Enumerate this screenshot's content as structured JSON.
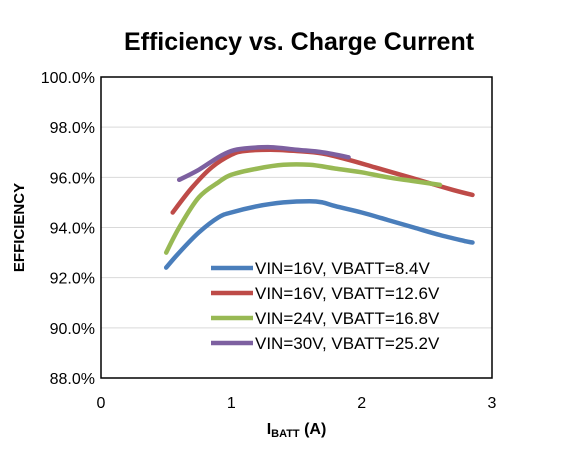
{
  "chart_data": {
    "type": "line",
    "title": "Efficiency vs. Charge Current",
    "ylabel": "EFFICIENCY",
    "xlabel_main": "I",
    "xlabel_sub": "BATT",
    "xlabel_unit": " (A)",
    "xlim": [
      0,
      3
    ],
    "ylim": [
      88,
      100
    ],
    "xticks": [
      0,
      1,
      2,
      3
    ],
    "xtick_labels": [
      "0",
      "1",
      "2",
      "3"
    ],
    "yticks": [
      88,
      90,
      92,
      94,
      96,
      98,
      100
    ],
    "ytick_labels": [
      "88.0%",
      "90.0%",
      "92.0%",
      "94.0%",
      "96.0%",
      "98.0%",
      "100.0%"
    ],
    "grid": true,
    "legend_position": "bottom-right",
    "series": [
      {
        "name": "VIN=16V, VBATT=8.4V",
        "color": "#4a7ebb",
        "x": [
          0.5,
          0.6,
          0.75,
          0.9,
          1.0,
          1.2,
          1.4,
          1.6,
          1.7,
          1.8,
          2.0,
          2.2,
          2.4,
          2.6,
          2.8,
          2.85
        ],
        "y": [
          92.4,
          93.0,
          93.8,
          94.4,
          94.6,
          94.85,
          95.0,
          95.05,
          95.0,
          94.85,
          94.6,
          94.3,
          94.0,
          93.7,
          93.45,
          93.4
        ]
      },
      {
        "name": "VIN=16V, VBATT=12.6V",
        "color": "#be4b48",
        "x": [
          0.55,
          0.7,
          0.85,
          1.0,
          1.1,
          1.3,
          1.5,
          1.7,
          1.9,
          2.1,
          2.3,
          2.5,
          2.7,
          2.85
        ],
        "y": [
          94.6,
          95.6,
          96.4,
          96.9,
          97.05,
          97.1,
          97.05,
          96.95,
          96.7,
          96.4,
          96.1,
          95.8,
          95.5,
          95.3
        ]
      },
      {
        "name": "VIN=24V, VBATT=16.8V",
        "color": "#98b954",
        "x": [
          0.5,
          0.6,
          0.75,
          0.9,
          1.0,
          1.2,
          1.4,
          1.6,
          1.8,
          2.0,
          2.2,
          2.4,
          2.6
        ],
        "y": [
          93.0,
          94.0,
          95.2,
          95.8,
          96.1,
          96.35,
          96.5,
          96.5,
          96.35,
          96.2,
          96.0,
          95.85,
          95.7
        ]
      },
      {
        "name": "VIN=30V, VBATT=25.2V",
        "color": "#7d60a0",
        "x": [
          0.6,
          0.75,
          0.9,
          1.0,
          1.1,
          1.3,
          1.5,
          1.7,
          1.9
        ],
        "y": [
          95.9,
          96.3,
          96.8,
          97.05,
          97.15,
          97.2,
          97.1,
          97.0,
          96.8
        ]
      }
    ]
  }
}
